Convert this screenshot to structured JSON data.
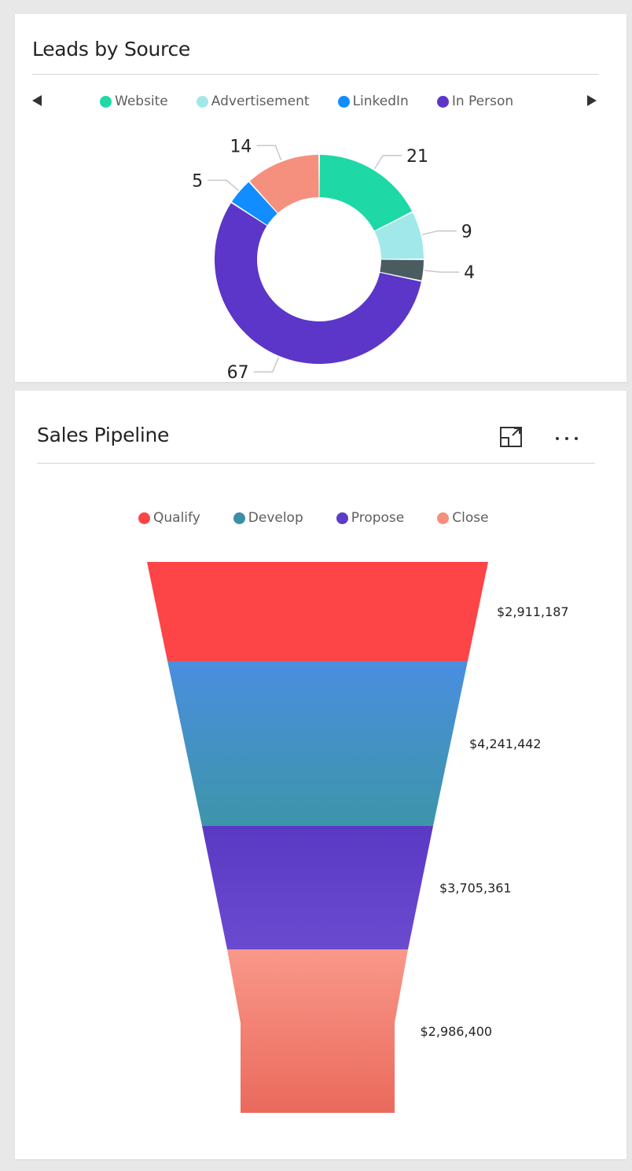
{
  "leads_card": {
    "title": "Leads by Source",
    "legend_prev_icon": "triangle-left-icon",
    "legend_next_icon": "triangle-right-icon",
    "legend": [
      {
        "label": "Website",
        "color": "#1ed8a5"
      },
      {
        "label": "Advertisement",
        "color": "#a0e8ea"
      },
      {
        "label": "LinkedIn",
        "color": "#118dff"
      },
      {
        "label": "In Person",
        "color": "#5b36c8"
      }
    ]
  },
  "pipeline_card": {
    "title": "Sales Pipeline",
    "focus_mode_icon": "focus-mode-icon",
    "more_options_icon": "ellipsis-icon",
    "more_options_label": "···",
    "legend": [
      {
        "label": "Qualify",
        "color": "#fd4446"
      },
      {
        "label": "Develop",
        "color": "#3d8ea9"
      },
      {
        "label": "Propose",
        "color": "#5b3cc6"
      },
      {
        "label": "Close",
        "color": "#f6907e"
      }
    ]
  },
  "chart_data": [
    {
      "type": "pie",
      "title": "Leads by Source",
      "variant": "donut",
      "slices": [
        {
          "value": 21,
          "label": "21",
          "color": "#1ed8a5"
        },
        {
          "value": 9,
          "label": "9",
          "color": "#a0e8ea"
        },
        {
          "value": 4,
          "label": "4",
          "color": "#4b5c61"
        },
        {
          "value": 67,
          "label": "67",
          "color": "#5b36c8"
        },
        {
          "value": 5,
          "label": "5",
          "color": "#118dff"
        },
        {
          "value": 14,
          "label": "14",
          "color": "#f6907e"
        }
      ]
    },
    {
      "type": "bar",
      "variant": "funnel",
      "title": "Sales Pipeline",
      "categories": [
        "Qualify",
        "Develop",
        "Propose",
        "Close"
      ],
      "values": [
        2911187,
        4241442,
        3705361,
        2986400
      ],
      "value_labels": [
        "$2,911,187",
        "$4,241,442",
        "$3,705,361",
        "$2,986,400"
      ],
      "colors": [
        [
          "#fd4446",
          "#fd4446"
        ],
        [
          "#4a8ee0",
          "#3d95a9"
        ],
        [
          "#5a39c4",
          "#6a4bcf"
        ],
        [
          "#f9988a",
          "#ea6a5c"
        ]
      ]
    }
  ]
}
